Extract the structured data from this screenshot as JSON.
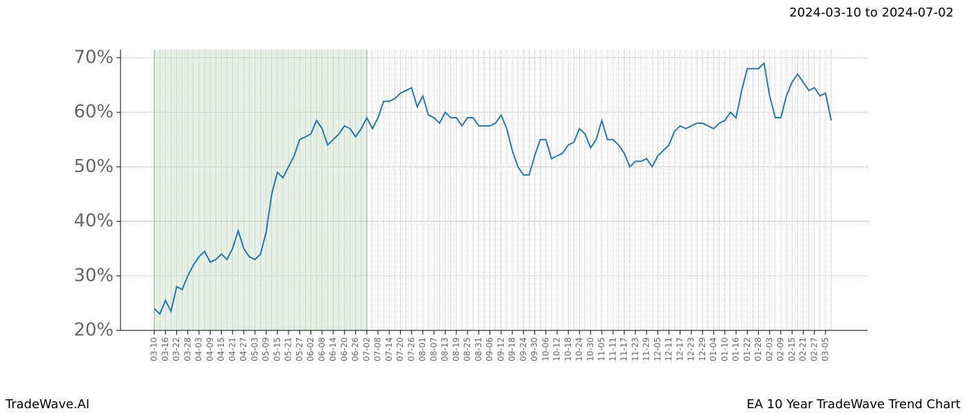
{
  "chart_data": {
    "type": "line",
    "title": "EA 10 Year TradeWave Trend Chart",
    "subtitle": "2024-03-10 to 2024-07-02",
    "brand": "TradeWave.AI",
    "categories": [
      "03-10",
      null,
      "03-16",
      null,
      "03-22",
      null,
      "03-28",
      null,
      "04-03",
      null,
      "04-09",
      null,
      "04-15",
      null,
      "04-21",
      null,
      "04-27",
      null,
      "05-03",
      null,
      "05-09",
      null,
      "05-15",
      null,
      "05-21",
      null,
      "05-27",
      null,
      "06-02",
      null,
      "06-08",
      null,
      "06-14",
      null,
      "06-20",
      null,
      "06-26",
      null,
      "07-02",
      null,
      "07-08",
      null,
      "07-14",
      null,
      "07-20",
      null,
      "07-26",
      null,
      "08-01",
      null,
      "08-07",
      null,
      "08-13",
      null,
      "08-19",
      null,
      "08-25",
      null,
      "08-31",
      null,
      "09-06",
      null,
      "09-12",
      null,
      "09-18",
      null,
      "09-24",
      null,
      "09-30",
      null,
      "10-06",
      null,
      "10-12",
      null,
      "10-18",
      null,
      "10-24",
      null,
      "10-30",
      null,
      "11-05",
      null,
      "11-11",
      null,
      "11-17",
      null,
      "11-23",
      null,
      "11-29",
      null,
      "12-05",
      null,
      "12-11",
      null,
      "12-17",
      null,
      "12-23",
      null,
      "12-29",
      null,
      "01-04",
      null,
      "01-10",
      null,
      "01-16",
      null,
      "01-22",
      null,
      "01-28",
      null,
      "02-03",
      null,
      "02-09",
      null,
      "02-15",
      null,
      "02-21",
      null,
      "02-27",
      null,
      "03-05",
      null
    ],
    "series": [
      {
        "color": "#1f77b4",
        "values": [
          24,
          23,
          25.5,
          23.5,
          28,
          27.5,
          30,
          32,
          33.5,
          34.5,
          32.5,
          33,
          34,
          33,
          35,
          38.3,
          35,
          33.5,
          33,
          34,
          38,
          45,
          49,
          48,
          50,
          52,
          55,
          55.5,
          56,
          58.5,
          57,
          54,
          55,
          56,
          57.5,
          57,
          55.5,
          57,
          59,
          57,
          59,
          62,
          62,
          62.5,
          63.5,
          64,
          64.5,
          61,
          63,
          59.5,
          59,
          58,
          60,
          59,
          59,
          57.5,
          59,
          59,
          57.5,
          57.5,
          57.5,
          58,
          59.5,
          57,
          53,
          50,
          48.5,
          48.5,
          52,
          55,
          55,
          51.5,
          52,
          52.5,
          54,
          54.5,
          57,
          56,
          53.5,
          55,
          58.5,
          55,
          55,
          54,
          52.5,
          50,
          51,
          51,
          51.5,
          50,
          52,
          53,
          54,
          56.5,
          57.5,
          57,
          57.5,
          58,
          58,
          57.5,
          57,
          58,
          58.5,
          60,
          59,
          64,
          68,
          68,
          68,
          69,
          63,
          59,
          59,
          63,
          65.5,
          67,
          65.5,
          64,
          64.5,
          63,
          63.5,
          58.5
        ]
      }
    ],
    "shaded_range": [
      "03-10",
      "07-02"
    ],
    "shade_color": "#e6f1e6",
    "ylim": [
      20,
      71.5
    ],
    "yticks": [
      {
        "value": 20,
        "label": "20%"
      },
      {
        "value": 30,
        "label": "30%"
      },
      {
        "value": 40,
        "label": "40%"
      },
      {
        "value": 50,
        "label": "50%"
      },
      {
        "value": 60,
        "label": "60%"
      },
      {
        "value": 70,
        "label": "70%"
      }
    ],
    "grid": true
  }
}
